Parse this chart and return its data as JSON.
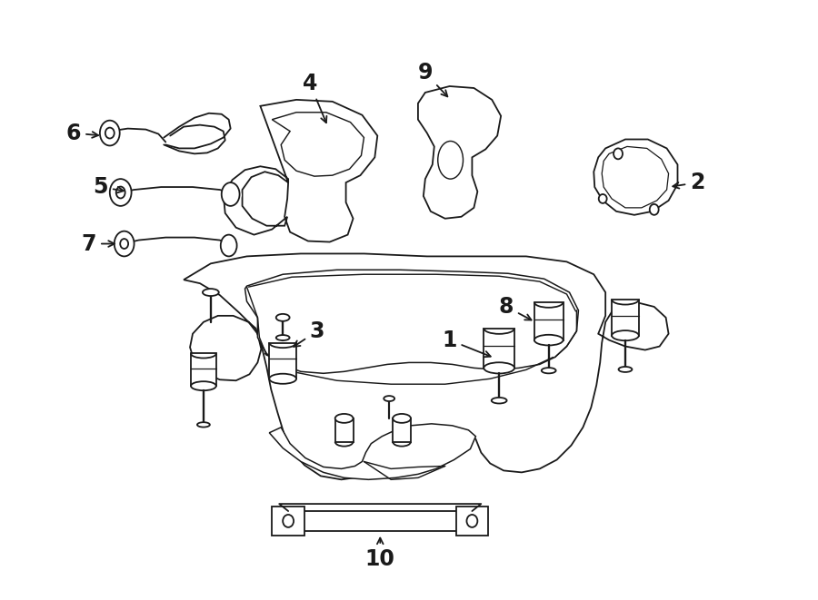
{
  "bg_color": "#ffffff",
  "line_color": "#1a1a1a",
  "lw": 1.3,
  "fig_width": 9.0,
  "fig_height": 6.61,
  "dpi": 100,
  "label_fs": 17,
  "label_fw": "bold"
}
